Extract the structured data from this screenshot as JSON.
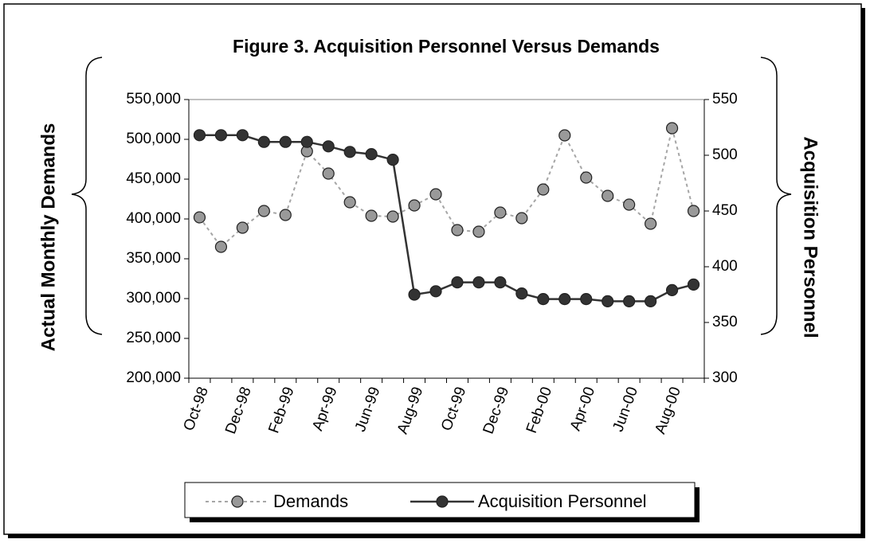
{
  "chart_data": {
    "type": "line",
    "title": "Figure 3.  Acquisition Personnel Versus Demands",
    "y_label": "Actual Monthly Demands",
    "y2_label": "Acquisition Personnel",
    "categories": [
      "Oct-98",
      null,
      "Dec-98",
      null,
      "Feb-99",
      null,
      "Apr-99",
      null,
      "Jun-99",
      null,
      "Aug-99",
      null,
      "Oct-99",
      null,
      "Dec-99",
      null,
      "Feb-00",
      null,
      "Apr-00",
      null,
      "Jun-00",
      null,
      "Aug-00",
      null
    ],
    "series": [
      {
        "name": "Demands",
        "color": "#a6a6a6",
        "marker_color": "#999999",
        "dashed": true,
        "values": [
          402000,
          365000,
          389000,
          410000,
          405000,
          485000,
          457000,
          421000,
          404000,
          403000,
          417000,
          431000,
          386000,
          384000,
          408000,
          401000,
          437000,
          505000,
          452000,
          429000,
          418000,
          394000,
          514000,
          410000
        ]
      },
      {
        "name": "Acquisition Personnel",
        "color": "#333333",
        "marker_color": "#333333",
        "dashed": false,
        "axis": "y2",
        "values": [
          518,
          518,
          518,
          512,
          512,
          512,
          508,
          503,
          501,
          496,
          375,
          378,
          386,
          386,
          386,
          376,
          371,
          371,
          371,
          369,
          369,
          369,
          379,
          384
        ]
      }
    ],
    "ylim": [
      200000,
      550000
    ],
    "yticks": [
      {
        "value": 200000,
        "label": "200,000"
      },
      {
        "value": 250000,
        "label": "250,000"
      },
      {
        "value": 300000,
        "label": "300,000"
      },
      {
        "value": 350000,
        "label": "350,000"
      },
      {
        "value": 400000,
        "label": "400,000"
      },
      {
        "value": 450000,
        "label": "450,000"
      },
      {
        "value": 500000,
        "label": "500,000"
      },
      {
        "value": 550000,
        "label": "550,000"
      }
    ],
    "y2lim": [
      300,
      550
    ],
    "y2ticks": [
      300,
      350,
      400,
      450,
      500,
      550
    ],
    "grid": false,
    "legend": "bottom"
  }
}
